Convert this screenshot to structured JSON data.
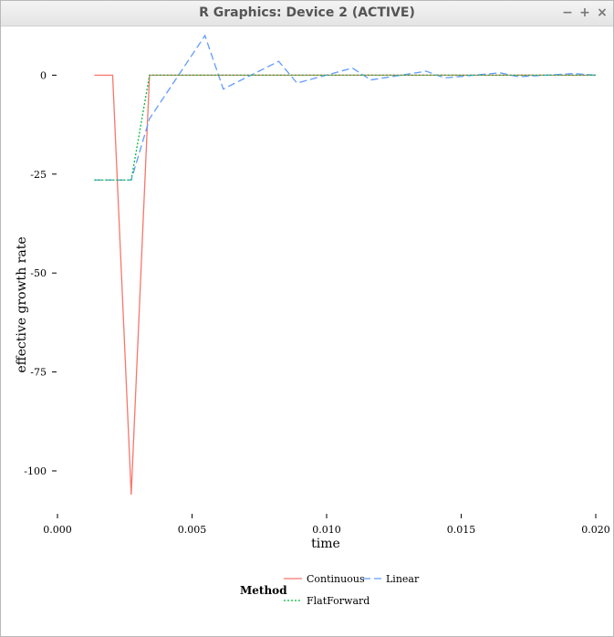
{
  "window": {
    "title": "R Graphics: Device 2 (ACTIVE)",
    "buttons": {
      "minimize": "−",
      "maximize": "+",
      "close": "×"
    }
  },
  "chart_data": {
    "type": "line",
    "xlabel": "time",
    "ylabel": "effective growth rate",
    "xlim": [
      0.0,
      0.02
    ],
    "ylim": [
      -106,
      10
    ],
    "xticks": [
      0.0,
      0.005,
      0.01,
      0.015,
      0.02
    ],
    "xtick_labels": [
      "0.000",
      "0.005",
      "0.010",
      "0.015",
      "0.020"
    ],
    "yticks": [
      0,
      -25,
      -50,
      -75,
      -100
    ],
    "ytick_labels": [
      "0",
      "-25",
      "-50",
      "-75",
      "-100"
    ],
    "grid": false,
    "legend": {
      "title": "Method",
      "placement": "bottom",
      "entries": [
        "Continuous",
        "Linear",
        "FlatForward"
      ]
    },
    "series": [
      {
        "name": "Continuous",
        "color": "#f8766d",
        "dash": "solid",
        "x": [
          0.00137,
          0.00205,
          0.00274,
          0.00342,
          0.00411,
          0.02
        ],
        "y": [
          0,
          0,
          -106,
          0,
          0,
          0
        ]
      },
      {
        "name": "Linear",
        "color": "#619cff",
        "dash": "longdash",
        "x": [
          0.00137,
          0.00274,
          0.00342,
          0.00548,
          0.00616,
          0.00822,
          0.0089,
          0.01096,
          0.01164,
          0.0137,
          0.01438,
          0.01644,
          0.01712,
          0.01918,
          0.02
        ],
        "y": [
          -26.5,
          -26.5,
          -11,
          10,
          -3.5,
          3.5,
          -2,
          1.8,
          -1.2,
          1.0,
          -0.7,
          0.6,
          -0.4,
          0.4,
          0
        ]
      },
      {
        "name": "FlatForward",
        "color": "#00ba38",
        "dash": "dotted",
        "x": [
          0.00137,
          0.00274,
          0.00342,
          0.02
        ],
        "y": [
          -26.5,
          -26.5,
          0,
          0
        ]
      }
    ]
  }
}
